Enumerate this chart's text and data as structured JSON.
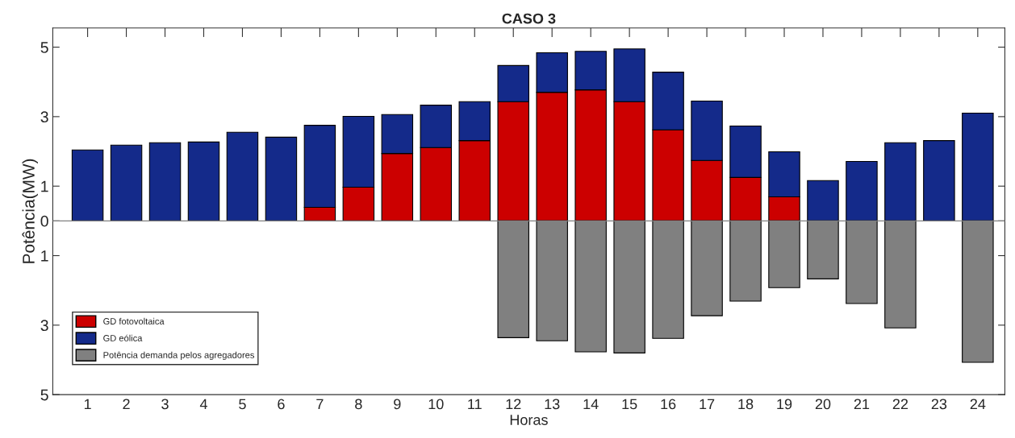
{
  "chart_data": {
    "type": "bar",
    "title": "CASO 3",
    "xlabel": "Horas",
    "ylabel": "Potência(MW)",
    "categories": [
      "1",
      "2",
      "3",
      "4",
      "5",
      "6",
      "7",
      "8",
      "9",
      "10",
      "11",
      "12",
      "13",
      "14",
      "15",
      "16",
      "17",
      "18",
      "19",
      "20",
      "21",
      "22",
      "23",
      "24"
    ],
    "stacked": true,
    "series": [
      {
        "name": "GD fotovoltaica",
        "color": "#cc0000",
        "values": [
          0,
          0,
          0,
          0,
          0,
          0,
          0.39,
          0.97,
          1.94,
          2.11,
          2.31,
          3.43,
          3.7,
          3.77,
          3.43,
          2.62,
          1.74,
          1.25,
          0.69,
          0,
          0,
          0,
          0,
          0
        ]
      },
      {
        "name": "GD eólica",
        "color": "#142a8a",
        "values": [
          2.04,
          2.18,
          2.25,
          2.27,
          2.55,
          2.41,
          2.36,
          2.04,
          1.12,
          1.22,
          1.12,
          1.04,
          1.14,
          1.11,
          1.52,
          1.66,
          1.71,
          1.48,
          1.3,
          1.16,
          1.71,
          2.25,
          2.31,
          3.1
        ]
      },
      {
        "name": "Potência demanda pelos agregadores",
        "color": "#808080",
        "values": [
          0,
          0,
          0,
          0,
          0,
          0,
          0,
          0,
          0,
          0,
          0,
          -3.36,
          -3.45,
          -3.77,
          -3.8,
          -3.38,
          -2.73,
          -2.31,
          -1.92,
          -1.67,
          -2.38,
          -3.08,
          0,
          -4.07
        ]
      }
    ],
    "ylim": [
      -5,
      5.55
    ],
    "yticks": [
      {
        "value": -5,
        "label": "5"
      },
      {
        "value": -3,
        "label": "3"
      },
      {
        "value": -1,
        "label": "1"
      },
      0,
      1,
      3,
      5
    ],
    "ref_lines": [
      {
        "axis": "y",
        "value": 0,
        "color": "#808080"
      }
    ],
    "grid": false,
    "legend": "bottom left"
  }
}
